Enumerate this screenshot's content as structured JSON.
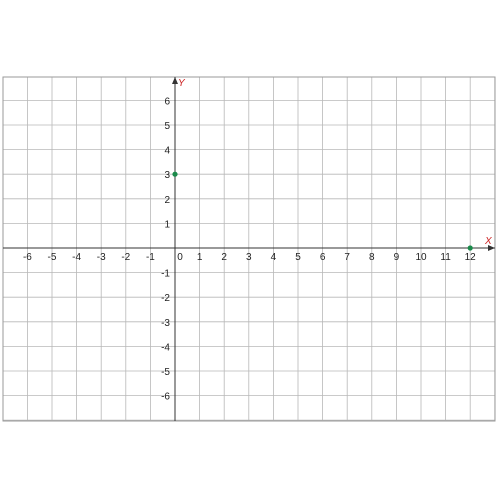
{
  "chart_data": {
    "type": "scatter",
    "title": "",
    "xlabel": "X",
    "ylabel": "Y",
    "xlim": [
      -7,
      13
    ],
    "ylim": [
      -7,
      7
    ],
    "grid": true,
    "x_ticks": [
      "-6",
      "-5",
      "-4",
      "-3",
      "-2",
      "-1",
      "0",
      "1",
      "2",
      "3",
      "4",
      "5",
      "6",
      "7",
      "8",
      "9",
      "10",
      "11",
      "12"
    ],
    "y_ticks": [
      "6",
      "5",
      "4",
      "3",
      "2",
      "1",
      "-1",
      "-2",
      "-3",
      "-4",
      "-5",
      "-6"
    ],
    "series": [
      {
        "points": [
          {
            "x": 0,
            "y": 3
          },
          {
            "x": 12,
            "y": 0
          }
        ]
      }
    ]
  },
  "colors": {
    "point": "#1a8a4a",
    "axis_label": "#cc2222",
    "grid": "#b8b8b8",
    "axis": "#333333"
  }
}
